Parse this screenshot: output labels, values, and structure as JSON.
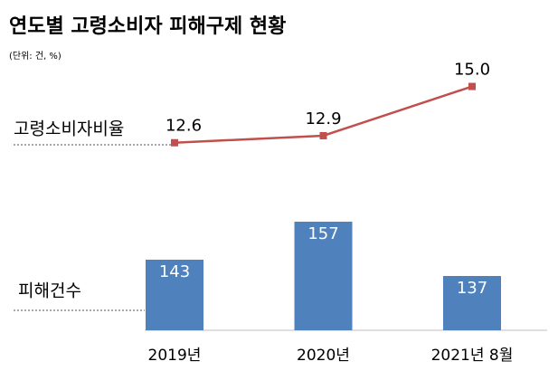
{
  "chart_data": {
    "type": "combo",
    "title": "연도별 고령소비자 피해구제 현황",
    "subtitle": "(단위: 건, %)",
    "categories": [
      "2019년",
      "2020년",
      "2021년 8월"
    ],
    "series": [
      {
        "name": "피해건수",
        "type": "bar",
        "color": "#4f81bd",
        "values": [
          143,
          157,
          137
        ]
      },
      {
        "name": "고령소비자비율",
        "type": "line",
        "axis": "y2",
        "color": "#c0504d",
        "values": [
          12.6,
          12.9,
          15.0
        ],
        "value_labels": [
          "12.6",
          "12.9",
          "15.0"
        ]
      }
    ],
    "ylim": [
      117,
      212
    ],
    "y2lim": [
      4.6,
      15.6
    ]
  }
}
